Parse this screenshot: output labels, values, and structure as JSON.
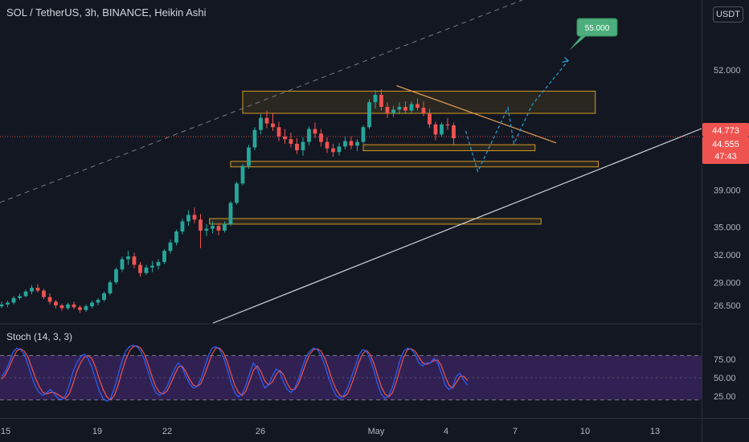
{
  "header": {
    "title": "SOL / TetherUS, 3h, BINANCE, Heikin Ashi",
    "currency": "USDT"
  },
  "colors": {
    "background": "#131722",
    "up": "#26a69a",
    "down": "#ef5350",
    "zone_border": "#d39a24",
    "zone_fill": "rgba(211,154,36,0.12)",
    "resistance_line": "#e8a052",
    "projection": "#2a9fd6",
    "target_badge": "#4cae7c",
    "stoch_k": "#2962ff",
    "stoch_d": "#ef5350",
    "stoch_band": "#4a2a7a"
  },
  "chart_data": {
    "type": "candlestick",
    "style": "Heikin Ashi",
    "symbol": "SOL / TetherUS",
    "interval": "3h",
    "exchange": "BINANCE",
    "price_axis": {
      "ticks": [
        {
          "value": 52.0,
          "label": "52.000"
        },
        {
          "value": 39.0,
          "label": "39.000"
        },
        {
          "value": 35.0,
          "label": "35.000"
        },
        {
          "value": 32.0,
          "label": "32.000"
        },
        {
          "value": 29.0,
          "label": "29.000"
        },
        {
          "value": 26.5,
          "label": "26.500"
        }
      ]
    },
    "price_labels": [
      {
        "value": 44.773,
        "label": "44.773"
      },
      {
        "value": 44.555,
        "label": "44.555"
      },
      {
        "countdown": "47:43"
      }
    ],
    "date_axis": [
      "15",
      "19",
      "22",
      "26",
      "May",
      "4",
      "7",
      "10",
      "13"
    ],
    "target": {
      "value": 55.0,
      "label": "55.000"
    },
    "candles_ohlc": [
      [
        26.4,
        26.9,
        26.2,
        26.6
      ],
      [
        26.6,
        27.0,
        26.3,
        26.8
      ],
      [
        26.8,
        27.5,
        26.6,
        27.3
      ],
      [
        27.3,
        27.8,
        27.1,
        27.5
      ],
      [
        27.5,
        28.2,
        27.4,
        28.0
      ],
      [
        28.0,
        28.7,
        27.7,
        28.4
      ],
      [
        28.4,
        28.8,
        27.9,
        28.1
      ],
      [
        28.1,
        28.3,
        27.2,
        27.4
      ],
      [
        27.4,
        27.8,
        26.6,
        26.9
      ],
      [
        26.9,
        27.1,
        26.2,
        26.5
      ],
      [
        26.5,
        26.7,
        25.9,
        26.2
      ],
      [
        26.2,
        26.8,
        26.0,
        26.6
      ],
      [
        26.6,
        26.9,
        26.1,
        26.3
      ],
      [
        26.3,
        26.5,
        25.7,
        26.0
      ],
      [
        26.0,
        26.6,
        25.8,
        26.4
      ],
      [
        26.4,
        27.0,
        26.2,
        26.8
      ],
      [
        26.8,
        27.3,
        26.5,
        27.1
      ],
      [
        27.1,
        28.0,
        26.9,
        27.8
      ],
      [
        27.8,
        29.2,
        27.6,
        29.0
      ],
      [
        29.0,
        30.6,
        28.8,
        30.4
      ],
      [
        30.4,
        31.8,
        30.1,
        31.5
      ],
      [
        31.5,
        32.4,
        30.9,
        31.8
      ],
      [
        31.8,
        32.2,
        30.5,
        30.9
      ],
      [
        30.9,
        31.2,
        29.6,
        30.0
      ],
      [
        30.0,
        30.9,
        29.8,
        30.6
      ],
      [
        30.6,
        31.3,
        30.1,
        30.8
      ],
      [
        30.8,
        31.5,
        30.4,
        31.2
      ],
      [
        31.2,
        32.6,
        31.0,
        32.4
      ],
      [
        32.4,
        33.6,
        32.1,
        33.3
      ],
      [
        33.3,
        34.7,
        33.0,
        34.5
      ],
      [
        34.5,
        35.9,
        34.2,
        35.6
      ],
      [
        35.6,
        36.8,
        35.1,
        36.3
      ],
      [
        36.3,
        37.1,
        35.4,
        35.8
      ],
      [
        35.8,
        36.4,
        32.7,
        34.6
      ],
      [
        34.6,
        35.3,
        34.0,
        34.8
      ],
      [
        34.8,
        35.6,
        34.3,
        35.1
      ],
      [
        35.1,
        35.4,
        34.1,
        34.6
      ],
      [
        34.6,
        35.6,
        34.4,
        35.3
      ],
      [
        35.3,
        37.8,
        35.1,
        37.6
      ],
      [
        37.6,
        39.9,
        37.4,
        39.7
      ],
      [
        39.7,
        41.8,
        39.5,
        41.6
      ],
      [
        41.6,
        43.9,
        41.3,
        43.6
      ],
      [
        43.6,
        45.8,
        43.3,
        45.5
      ],
      [
        45.5,
        47.2,
        45.0,
        46.8
      ],
      [
        46.8,
        47.6,
        45.7,
        46.2
      ],
      [
        46.2,
        47.3,
        45.4,
        45.8
      ],
      [
        45.8,
        46.4,
        44.3,
        44.8
      ],
      [
        44.8,
        45.6,
        44.0,
        44.5
      ],
      [
        44.5,
        45.2,
        43.6,
        44.0
      ],
      [
        44.0,
        44.6,
        42.9,
        43.3
      ],
      [
        43.3,
        44.7,
        42.7,
        44.2
      ],
      [
        44.2,
        45.9,
        43.8,
        45.6
      ],
      [
        45.6,
        46.3,
        44.6,
        45.1
      ],
      [
        45.1,
        45.6,
        43.7,
        44.2
      ],
      [
        44.2,
        44.7,
        43.0,
        43.5
      ],
      [
        43.5,
        44.0,
        42.6,
        43.1
      ],
      [
        43.1,
        44.1,
        42.7,
        43.7
      ],
      [
        43.7,
        44.8,
        43.4,
        44.3
      ],
      [
        44.3,
        44.8,
        43.4,
        43.8
      ],
      [
        43.8,
        44.5,
        43.2,
        44.2
      ],
      [
        44.2,
        46.0,
        44.0,
        45.8
      ],
      [
        45.8,
        48.8,
        45.6,
        48.5
      ],
      [
        48.5,
        49.8,
        47.8,
        49.3
      ],
      [
        49.3,
        49.9,
        47.6,
        48.0
      ],
      [
        48.0,
        48.5,
        46.8,
        47.3
      ],
      [
        47.3,
        48.1,
        46.9,
        47.7
      ],
      [
        47.7,
        48.5,
        47.2,
        48.0
      ],
      [
        48.0,
        48.6,
        47.3,
        47.6
      ],
      [
        47.6,
        48.6,
        47.3,
        48.3
      ],
      [
        48.3,
        48.9,
        47.6,
        47.9
      ],
      [
        47.9,
        48.6,
        47.0,
        47.3
      ],
      [
        47.3,
        47.8,
        45.7,
        46.1
      ],
      [
        46.1,
        46.4,
        44.4,
        45.0
      ],
      [
        45.0,
        46.3,
        44.8,
        46.1
      ],
      [
        46.1,
        46.8,
        45.5,
        46.0
      ],
      [
        46.0,
        46.3,
        43.9,
        44.6
      ]
    ],
    "zones": [
      {
        "name": "resistance",
        "from": 47.3,
        "to": 49.7
      },
      {
        "name": "support-upper",
        "from": 43.25,
        "to": 43.9
      },
      {
        "name": "support",
        "from": 41.5,
        "to": 42.1
      },
      {
        "name": "demand",
        "from": 35.3,
        "to": 35.9
      }
    ],
    "stochastic": {
      "label": "Stoch (14, 3, 3)",
      "params": [
        14,
        3,
        3
      ],
      "axis_ticks": [
        {
          "value": 75,
          "label": "75.00"
        },
        {
          "value": 50,
          "label": "50.00"
        },
        {
          "value": 25,
          "label": "25.00"
        }
      ],
      "upper_band": 80,
      "lower_band": 20,
      "k": [
        52,
        58,
        70,
        84,
        90,
        88,
        82,
        68,
        52,
        38,
        30,
        26,
        30,
        34,
        28,
        22,
        20,
        26,
        40,
        58,
        70,
        78,
        82,
        76,
        64,
        48,
        32,
        22,
        18,
        22,
        36,
        54,
        72,
        86,
        92,
        94,
        92,
        86,
        74,
        58,
        42,
        30,
        26,
        30,
        38,
        50,
        62,
        70,
        64,
        52,
        42,
        36,
        38,
        48,
        64,
        80,
        90,
        92,
        88,
        78,
        62,
        44,
        30,
        24,
        28,
        40,
        56,
        70,
        62,
        48,
        36,
        40,
        52,
        62,
        58,
        44,
        34,
        30,
        36,
        48,
        64,
        78,
        86,
        90,
        88,
        80,
        66,
        50,
        36,
        26,
        22,
        26,
        36,
        50,
        64,
        80,
        88,
        86,
        76,
        60,
        42,
        28,
        22,
        26,
        38,
        56,
        74,
        86,
        90,
        88,
        82,
        70,
        66,
        70,
        70,
        76,
        70,
        56,
        40,
        34,
        38,
        52,
        56,
        46,
        40
      ],
      "d": [
        48,
        54,
        64,
        76,
        86,
        89,
        86,
        78,
        64,
        50,
        38,
        30,
        28,
        30,
        30,
        27,
        24,
        22,
        28,
        42,
        58,
        70,
        78,
        80,
        76,
        64,
        48,
        34,
        24,
        20,
        26,
        40,
        58,
        74,
        86,
        92,
        93,
        90,
        82,
        68,
        52,
        38,
        30,
        28,
        32,
        42,
        54,
        64,
        66,
        58,
        48,
        40,
        38,
        42,
        54,
        68,
        82,
        90,
        90,
        84,
        72,
        56,
        40,
        30,
        26,
        32,
        46,
        60,
        66,
        58,
        46,
        40,
        44,
        54,
        60,
        54,
        42,
        34,
        34,
        42,
        56,
        70,
        82,
        88,
        89,
        86,
        76,
        62,
        46,
        34,
        26,
        24,
        28,
        40,
        54,
        70,
        82,
        87,
        82,
        70,
        54,
        38,
        28,
        24,
        30,
        44,
        62,
        78,
        88,
        89,
        86,
        78,
        70,
        68,
        70,
        73,
        74,
        66,
        52,
        40,
        36,
        44,
        52,
        52,
        46
      ]
    }
  }
}
